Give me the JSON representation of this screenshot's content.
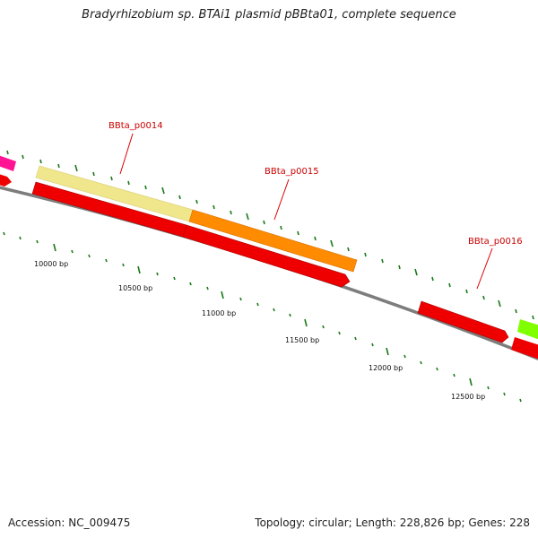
{
  "title": "Bradyrhizobium sp. BTAi1 plasmid pBBta01, complete sequence",
  "footer": {
    "accession": "Accession: NC_009475",
    "summary": "Topology: circular; Length: 228,826 bp; Genes: 228"
  },
  "genes": [
    {
      "name": "BBta_p0014",
      "color": "#f0e68c"
    },
    {
      "name": "BBta_p0015",
      "color": "#ff8c00"
    },
    {
      "name": "BBta_p0016",
      "color": "#ff0000"
    }
  ],
  "ruler": {
    "labels": [
      "10000 bp",
      "10500 bp",
      "11000 bp",
      "11500 bp",
      "12000 bp",
      "12500 bp"
    ]
  },
  "colors": {
    "backbone": "#808080",
    "tick": "#1a7a1a",
    "reverse_gene": "#ff0000",
    "partial_magenta": "#ff1493",
    "partial_green": "#7fff00"
  }
}
